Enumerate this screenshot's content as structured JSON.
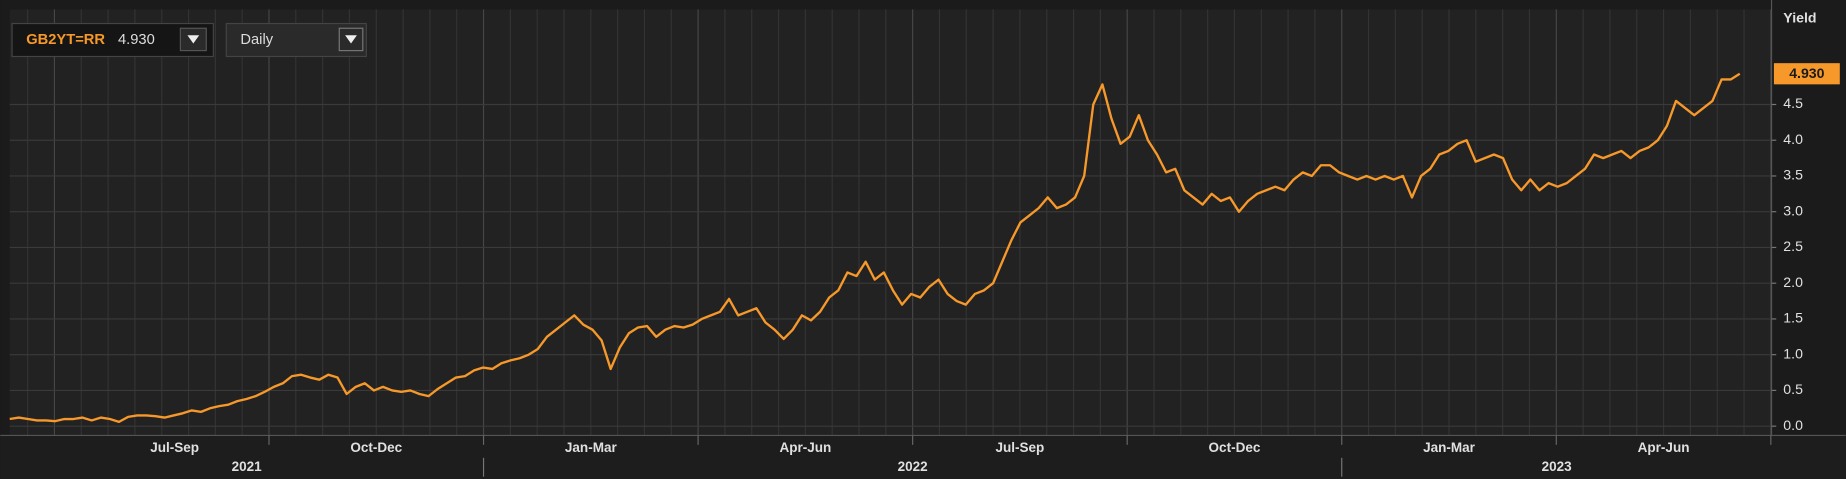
{
  "chart_data": {
    "type": "line",
    "series": [
      {
        "name": "GB2YT=RR",
        "color": "#f7982a",
        "values": [
          0.1,
          0.12,
          0.1,
          0.08,
          0.08,
          0.07,
          0.1,
          0.1,
          0.12,
          0.08,
          0.12,
          0.1,
          0.06,
          0.13,
          0.15,
          0.15,
          0.14,
          0.12,
          0.15,
          0.18,
          0.22,
          0.2,
          0.25,
          0.28,
          0.3,
          0.35,
          0.38,
          0.42,
          0.48,
          0.55,
          0.6,
          0.7,
          0.72,
          0.68,
          0.65,
          0.72,
          0.68,
          0.45,
          0.55,
          0.6,
          0.5,
          0.55,
          0.5,
          0.48,
          0.5,
          0.45,
          0.42,
          0.52,
          0.6,
          0.68,
          0.7,
          0.78,
          0.82,
          0.8,
          0.88,
          0.92,
          0.95,
          1.0,
          1.08,
          1.25,
          1.35,
          1.45,
          1.55,
          1.42,
          1.35,
          1.2,
          0.8,
          1.1,
          1.3,
          1.38,
          1.4,
          1.25,
          1.35,
          1.4,
          1.38,
          1.42,
          1.5,
          1.55,
          1.6,
          1.78,
          1.55,
          1.6,
          1.65,
          1.45,
          1.35,
          1.22,
          1.35,
          1.55,
          1.48,
          1.6,
          1.8,
          1.9,
          2.15,
          2.1,
          2.3,
          2.05,
          2.15,
          1.9,
          1.7,
          1.85,
          1.8,
          1.95,
          2.05,
          1.85,
          1.75,
          1.7,
          1.85,
          1.9,
          2.0,
          2.3,
          2.6,
          2.85,
          2.95,
          3.05,
          3.2,
          3.05,
          3.1,
          3.2,
          3.5,
          4.5,
          4.78,
          4.3,
          3.95,
          4.05,
          4.35,
          4.0,
          3.8,
          3.55,
          3.6,
          3.3,
          3.2,
          3.1,
          3.25,
          3.15,
          3.2,
          3.0,
          3.15,
          3.25,
          3.3,
          3.35,
          3.3,
          3.45,
          3.55,
          3.5,
          3.65,
          3.65,
          3.55,
          3.5,
          3.45,
          3.5,
          3.45,
          3.5,
          3.45,
          3.5,
          3.2,
          3.5,
          3.6,
          3.8,
          3.85,
          3.95,
          4.0,
          3.7,
          3.75,
          3.8,
          3.75,
          3.45,
          3.3,
          3.45,
          3.3,
          3.4,
          3.35,
          3.4,
          3.5,
          3.6,
          3.8,
          3.75,
          3.8,
          3.85,
          3.75,
          3.85,
          3.9,
          4.0,
          4.2,
          4.55,
          4.45,
          4.35,
          4.45,
          4.55,
          4.85,
          4.85,
          4.93
        ]
      }
    ],
    "last_value_label": "4.930",
    "interval": "Daily",
    "y_axis_label": "Yield",
    "ylim": [
      -0.13,
      5.83
    ],
    "yticks": [
      {
        "value": 0,
        "label": "0.0"
      },
      0.5,
      {
        "value": 1,
        "label": "1.0"
      },
      1.5,
      {
        "value": 2,
        "label": "2.0"
      },
      2.5,
      {
        "value": 3,
        "label": "3.0"
      },
      3.5,
      {
        "value": 4,
        "label": "4.0"
      },
      4.5
    ],
    "quarters": [
      "Jul-Sep",
      "Oct-Dec",
      "Jan-Mar",
      "Apr-Jun",
      "Jul-Sep",
      "Oct-Dec",
      "Jan-Mar",
      "Apr-Jun"
    ],
    "years": [
      "2021",
      "2022",
      "2023"
    ],
    "grid": true
  }
}
